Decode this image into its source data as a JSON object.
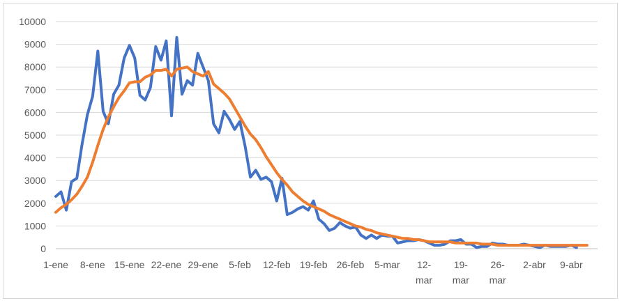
{
  "chart_data": {
    "type": "line",
    "title": "",
    "xlabel": "",
    "ylabel": "",
    "ylim": [
      0,
      10000
    ],
    "yticks": [
      0,
      1000,
      2000,
      3000,
      4000,
      5000,
      6000,
      7000,
      8000,
      9000,
      10000
    ],
    "grid": "horizontal",
    "legend": "none",
    "x_start": "1-ene",
    "x_end": "14-abr",
    "x_ticks": [
      {
        "date": "1-ene",
        "lines": [
          "1-ene"
        ]
      },
      {
        "date": "8-ene",
        "lines": [
          "8-ene"
        ]
      },
      {
        "date": "15-ene",
        "lines": [
          "15-ene"
        ]
      },
      {
        "date": "22-ene",
        "lines": [
          "22-ene"
        ]
      },
      {
        "date": "29-ene",
        "lines": [
          "29-ene"
        ]
      },
      {
        "date": "5-feb",
        "lines": [
          "5-feb"
        ]
      },
      {
        "date": "12-feb",
        "lines": [
          "12-feb"
        ]
      },
      {
        "date": "19-feb",
        "lines": [
          "19-feb"
        ]
      },
      {
        "date": "26-feb",
        "lines": [
          "26-feb"
        ]
      },
      {
        "date": "5-mar",
        "lines": [
          "5-mar"
        ]
      },
      {
        "date": "12-mar",
        "lines": [
          "12-",
          "mar"
        ]
      },
      {
        "date": "19-mar",
        "lines": [
          "19-",
          "mar"
        ]
      },
      {
        "date": "26-mar",
        "lines": [
          "26-",
          "mar"
        ]
      },
      {
        "date": "2-abr",
        "lines": [
          "2-abr"
        ]
      },
      {
        "date": "9-abr",
        "lines": [
          "9-abr"
        ]
      }
    ],
    "series": [
      {
        "color": "#4472c4",
        "values": [
          2300,
          2500,
          1700,
          2950,
          3100,
          4600,
          5900,
          6700,
          8700,
          6050,
          5500,
          6800,
          7200,
          8400,
          8950,
          8400,
          6750,
          6550,
          7100,
          8900,
          8300,
          9150,
          5850,
          9300,
          6800,
          7400,
          7200,
          8600,
          8000,
          7400,
          5500,
          5100,
          6050,
          5700,
          5250,
          5600,
          4500,
          3150,
          3450,
          3050,
          3150,
          2950,
          2100,
          3100,
          1500,
          1600,
          1750,
          1850,
          1700,
          2100,
          1300,
          1100,
          800,
          900,
          1150,
          1000,
          900,
          950,
          600,
          450,
          600,
          450,
          600,
          550,
          550,
          250,
          300,
          350,
          350,
          400,
          350,
          250,
          150,
          150,
          200,
          350,
          350,
          400,
          200,
          200,
          50,
          100,
          100,
          250,
          200,
          200,
          150,
          150,
          150,
          200,
          150,
          100,
          50,
          150,
          100,
          100,
          100,
          100,
          150,
          50
        ]
      },
      {
        "color": "#ed7d31",
        "values": [
          1600,
          1800,
          1950,
          2150,
          2400,
          2750,
          3150,
          3800,
          4550,
          5250,
          5800,
          6250,
          6650,
          6950,
          7300,
          7350,
          7350,
          7550,
          7650,
          7850,
          7850,
          7900,
          7600,
          7900,
          7950,
          8000,
          7800,
          7700,
          7600,
          7800,
          7250,
          7050,
          6850,
          6600,
          6200,
          5800,
          5400,
          5050,
          4800,
          4450,
          4050,
          3700,
          3350,
          3050,
          2800,
          2500,
          2300,
          2100,
          1950,
          1850,
          1750,
          1650,
          1500,
          1400,
          1300,
          1200,
          1100,
          1000,
          950,
          850,
          800,
          700,
          650,
          600,
          550,
          500,
          450,
          450,
          400,
          400,
          350,
          300,
          300,
          300,
          300,
          300,
          250,
          250,
          250,
          250,
          250,
          200,
          200,
          200,
          150,
          150,
          150,
          150,
          150,
          150,
          150,
          150,
          150,
          150,
          150,
          150,
          150,
          150,
          150,
          150,
          150,
          150
        ]
      }
    ]
  }
}
